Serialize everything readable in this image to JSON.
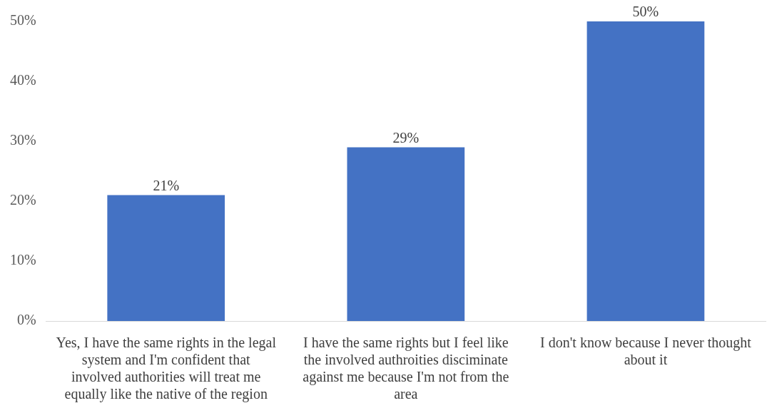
{
  "chart_data": {
    "type": "bar",
    "categories": [
      "Yes, I have the same rights in the legal system and I'm confident that involved authorities will treat me equally like the native of the region",
      "I have the same rights but I feel like the involved authroities disciminate against me because I'm not from the area",
      "I don't know because I never thought about it"
    ],
    "values": [
      21,
      29,
      50
    ],
    "color": "#4472c4",
    "value_labels": [
      "21%",
      "29%",
      "50%"
    ],
    "ylim": [
      0,
      50
    ],
    "yticks": [
      {
        "value": 0,
        "label": "0%"
      },
      {
        "value": 10,
        "label": "10%"
      },
      {
        "value": 20,
        "label": "20%"
      },
      {
        "value": 30,
        "label": "30%"
      },
      {
        "value": 40,
        "label": "40%"
      },
      {
        "value": 50,
        "label": "50%"
      }
    ],
    "grid": false,
    "legend": false
  }
}
